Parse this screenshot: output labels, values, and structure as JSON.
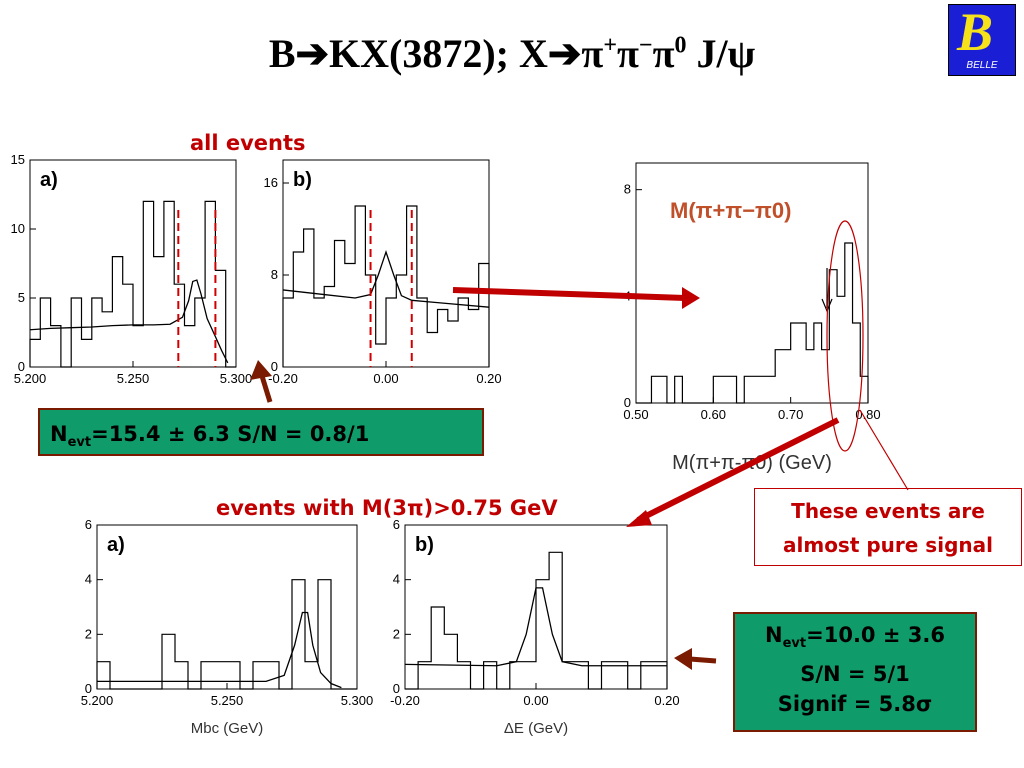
{
  "title": {
    "prefix": "B",
    "mid1": "KX(3872);  X",
    "tail": " J/"
  },
  "labels": {
    "all_events": "all events",
    "events_cut": "events with M(3π)>0.75 GeV",
    "mpi_plot_label": "M(π+π−π0)",
    "pure_signal": "These events are almost pure signal",
    "logo_text": "BELLE"
  },
  "box_all": {
    "text": "=15.4 ± 6.3 S/N = 0.8/1",
    "n_label": "N",
    "n_sub": "evt"
  },
  "box_cut": {
    "line1": "=10.0 ± 3.6",
    "n_label": "N",
    "n_sub": "evt",
    "line2": "S/N = 5/1",
    "line3": "Signif = 5.8σ"
  },
  "colors": {
    "red": "#c00000",
    "dark_red": "#7a1a00",
    "green_box": "#0f9b6a",
    "logo_blue": "#1a1fd6",
    "logo_yellow": "#f6e21a"
  },
  "chart_data": [
    {
      "id": "top-mbc",
      "type": "line",
      "panel": "a)",
      "xlim": [
        5.2,
        5.3
      ],
      "ylim": [
        0,
        15
      ],
      "xticks": [
        "5.200",
        "5.250",
        "5.300"
      ],
      "yticks": [
        0,
        5,
        10,
        15
      ],
      "bin_edges": [
        5.2,
        5.205,
        5.21,
        5.215,
        5.22,
        5.225,
        5.23,
        5.235,
        5.24,
        5.245,
        5.25,
        5.255,
        5.26,
        5.265,
        5.27,
        5.275,
        5.28,
        5.285,
        5.29,
        5.295,
        5.3
      ],
      "values": [
        2,
        5,
        3,
        0,
        5,
        2,
        5,
        4,
        8,
        6,
        3,
        12,
        8,
        12,
        6,
        3,
        5,
        12,
        7,
        0
      ],
      "fit_x": [
        5.2,
        5.21,
        5.22,
        5.23,
        5.24,
        5.25,
        5.26,
        5.268,
        5.274,
        5.277,
        5.279,
        5.281,
        5.283,
        5.286,
        5.29,
        5.293,
        5.296
      ],
      "fit_y": [
        2.7,
        2.8,
        2.85,
        2.9,
        3.0,
        3.05,
        3.05,
        3.1,
        3.6,
        4.8,
        6.2,
        6.3,
        5.3,
        3.5,
        2.2,
        1.2,
        0.3
      ],
      "signal_window": [
        5.272,
        5.29
      ]
    },
    {
      "id": "top-de",
      "type": "line",
      "panel": "b)",
      "xlim": [
        -0.2,
        0.2
      ],
      "ylim": [
        0,
        18
      ],
      "xticks": [
        "-0.20",
        "0.00",
        "0.20"
      ],
      "yticks": [
        0,
        8,
        16
      ],
      "bin_edges": [
        -0.2,
        -0.18,
        -0.16,
        -0.14,
        -0.12,
        -0.1,
        -0.08,
        -0.06,
        -0.04,
        -0.02,
        0.0,
        0.02,
        0.04,
        0.06,
        0.08,
        0.1,
        0.12,
        0.14,
        0.16,
        0.18,
        0.2
      ],
      "values": [
        6,
        10,
        12,
        6,
        7,
        11,
        9,
        14,
        8,
        2,
        6,
        8,
        14,
        6,
        3,
        5,
        4,
        6,
        5,
        9
      ],
      "fit_x": [
        -0.2,
        -0.12,
        -0.06,
        -0.03,
        -0.015,
        0.0,
        0.015,
        0.03,
        0.05,
        0.1,
        0.2
      ],
      "fit_y": [
        6.7,
        6.3,
        6.0,
        6.3,
        8.0,
        10.0,
        8.0,
        6.2,
        5.8,
        5.6,
        5.2
      ],
      "signal_window": [
        -0.03,
        0.05
      ]
    },
    {
      "id": "m3pi",
      "type": "line",
      "xlim": [
        0.5,
        0.8
      ],
      "ylim": [
        0,
        9
      ],
      "xticks": [
        "0.50",
        "0.60",
        "0.70",
        "0.80"
      ],
      "yticks": [
        0,
        4,
        8
      ],
      "xlabel": "M(π+π-π0) (GeV)",
      "bin_edges": [
        0.5,
        0.51,
        0.52,
        0.53,
        0.54,
        0.55,
        0.56,
        0.57,
        0.58,
        0.59,
        0.6,
        0.61,
        0.62,
        0.63,
        0.64,
        0.65,
        0.66,
        0.67,
        0.68,
        0.69,
        0.7,
        0.71,
        0.72,
        0.73,
        0.74,
        0.75,
        0.76,
        0.77,
        0.78,
        0.79,
        0.8
      ],
      "values": [
        0,
        0,
        1,
        1,
        0,
        1,
        0,
        0,
        0,
        0,
        1,
        1,
        1,
        0,
        1,
        1,
        1,
        1,
        2,
        2,
        3,
        3,
        2,
        3,
        2,
        5,
        4,
        6,
        3,
        1
      ],
      "arrow_x": 0.747
    },
    {
      "id": "bottom-mbc",
      "type": "line",
      "panel": "a)",
      "xlim": [
        5.2,
        5.3
      ],
      "ylim": [
        0,
        6
      ],
      "xticks": [
        "5.200",
        "5.250",
        "5.300"
      ],
      "yticks": [
        0,
        2,
        4,
        6
      ],
      "xlabel": "Mbc (GeV)",
      "bin_edges": [
        5.2,
        5.205,
        5.21,
        5.215,
        5.22,
        5.225,
        5.23,
        5.235,
        5.24,
        5.245,
        5.25,
        5.255,
        5.26,
        5.265,
        5.27,
        5.275,
        5.28,
        5.285,
        5.29,
        5.295,
        5.3
      ],
      "values": [
        1,
        0,
        0,
        0,
        0,
        2,
        1,
        0,
        1,
        1,
        1,
        0,
        1,
        1,
        0,
        4,
        1,
        4,
        0,
        0
      ],
      "fit_x": [
        5.2,
        5.24,
        5.265,
        5.272,
        5.276,
        5.279,
        5.281,
        5.283,
        5.286,
        5.29,
        5.294
      ],
      "fit_y": [
        0.28,
        0.28,
        0.28,
        0.5,
        1.6,
        2.8,
        2.8,
        1.6,
        0.6,
        0.2,
        0.05
      ]
    },
    {
      "id": "bottom-de",
      "type": "line",
      "panel": "b)",
      "xlim": [
        -0.2,
        0.2
      ],
      "ylim": [
        0,
        6
      ],
      "xticks": [
        "-0.20",
        "0.00",
        "0.20"
      ],
      "yticks": [
        0,
        2,
        4,
        6
      ],
      "xlabel": "ΔE (GeV)",
      "bin_edges": [
        -0.2,
        -0.18,
        -0.16,
        -0.14,
        -0.12,
        -0.1,
        -0.08,
        -0.06,
        -0.04,
        -0.02,
        0.0,
        0.02,
        0.04,
        0.06,
        0.08,
        0.1,
        0.12,
        0.14,
        0.16,
        0.18,
        0.2
      ],
      "values": [
        0,
        1,
        3,
        2,
        1,
        0,
        1,
        0,
        1,
        1,
        4,
        5,
        1,
        1,
        0,
        1,
        1,
        0,
        1,
        1
      ],
      "fit_x": [
        -0.2,
        -0.06,
        -0.03,
        -0.015,
        0.0,
        0.01,
        0.025,
        0.04,
        0.07,
        0.2
      ],
      "fit_y": [
        0.9,
        0.85,
        1.0,
        2.0,
        3.7,
        3.7,
        2.0,
        1.0,
        0.85,
        0.85
      ]
    }
  ]
}
